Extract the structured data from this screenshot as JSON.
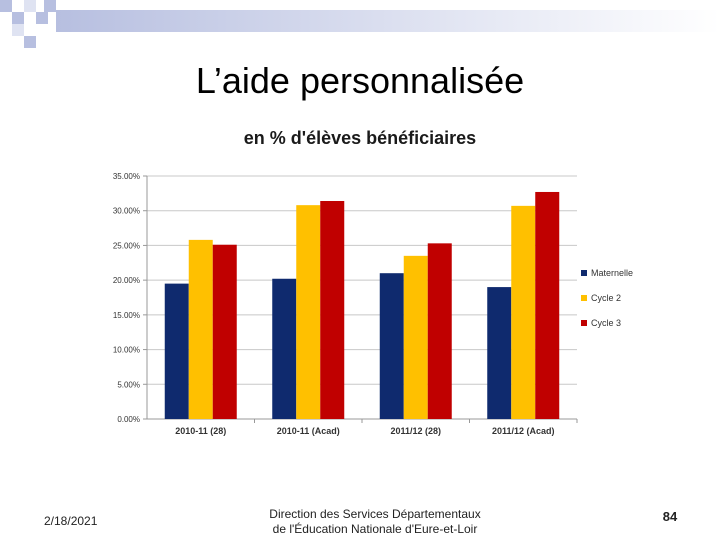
{
  "slide": {
    "title": "L’aide personnalisée",
    "date": "2/18/2021",
    "footer_line1": "Direction des Services Départementaux",
    "footer_line2": "de l'Éducation Nationale d'Eure-et-Loir",
    "page_number": "84"
  },
  "colors": {
    "decor_dark": "#b7bfe0",
    "decor_light": "#dfe3f2",
    "grid": "#c8c8c8"
  },
  "chart_data": {
    "type": "bar",
    "title": "en % d'élèves bénéficiaires",
    "categories": [
      "2010-11 (28)",
      "2010-11 (Acad)",
      "2011/12 (28)",
      "2011/12 (Acad)"
    ],
    "series": [
      {
        "name": "Maternelle",
        "color": "#0f2a6e",
        "values": [
          19.5,
          20.2,
          21.0,
          19.0
        ]
      },
      {
        "name": "Cycle 2",
        "color": "#ffc000",
        "values": [
          25.8,
          30.8,
          23.5,
          30.7
        ]
      },
      {
        "name": "Cycle 3",
        "color": "#c00000",
        "values": [
          25.1,
          31.4,
          25.3,
          32.7
        ]
      }
    ],
    "ylim": [
      0,
      35
    ],
    "yticks": [
      "0.00%",
      "5.00%",
      "10.00%",
      "15.00%",
      "20.00%",
      "25.00%",
      "30.00%",
      "35.00%"
    ],
    "legend_position": "right",
    "grid": true
  }
}
